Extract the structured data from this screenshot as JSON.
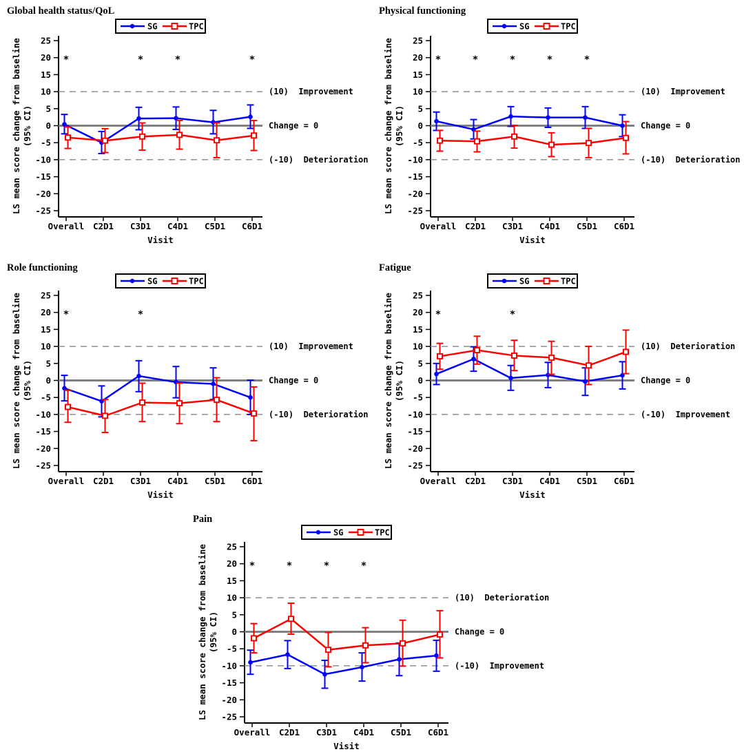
{
  "figure": {
    "colors": {
      "sg": "#0000ff",
      "tpc": "#ff0000",
      "zero_line": "#808080",
      "ref_line": "#8f8f8f",
      "axis": "#000000",
      "background": "#ffffff"
    },
    "legend": {
      "items": [
        {
          "label": "SG",
          "marker": "filled-circle",
          "color": "#0000ff"
        },
        {
          "label": "TPC",
          "marker": "open-square",
          "color": "#ff0000"
        }
      ]
    }
  },
  "axes_shared": {
    "ylabel_line1": "LS mean score change from baseline",
    "ylabel_line2": "(95% CI)",
    "xlabel": "Visit",
    "yticks": [
      25,
      20,
      15,
      10,
      5,
      0,
      -5,
      -10,
      -15,
      -20,
      -25
    ],
    "ylim": [
      -25,
      25
    ],
    "grid": false,
    "legend_position": "top-center",
    "zero_label": "Change = 0",
    "significance_marker": "*",
    "significance_y": 20
  },
  "chart_data": [
    {
      "type": "line",
      "title": "Global health status/QoL",
      "categories": [
        "Overall",
        "C2D1",
        "C3D1",
        "C4D1",
        "C5D1",
        "C6D1"
      ],
      "upper_ref": {
        "value": 10,
        "label": "(10)  Improvement"
      },
      "lower_ref": {
        "value": -10,
        "label": "(-10)  Deterioration"
      },
      "significance": [
        true,
        false,
        true,
        true,
        false,
        true
      ],
      "series": [
        {
          "name": "SG",
          "color": "#0000ff",
          "marker": "filled-circle",
          "values": [
            0.4,
            -5.0,
            2.1,
            2.2,
            1.0,
            2.6
          ],
          "ci_low": [
            -2.4,
            -8.2,
            -1.2,
            -1.1,
            -2.4,
            -0.8
          ],
          "ci_high": [
            3.3,
            -1.7,
            5.4,
            5.5,
            4.5,
            6.1
          ]
        },
        {
          "name": "TPC",
          "color": "#ff0000",
          "marker": "open-square",
          "values": [
            -3.5,
            -4.4,
            -3.2,
            -2.7,
            -4.3,
            -2.9
          ],
          "ci_low": [
            -6.7,
            -7.9,
            -7.2,
            -6.9,
            -9.4,
            -7.3
          ],
          "ci_high": [
            -0.4,
            -0.9,
            0.8,
            1.5,
            0.8,
            1.5
          ]
        }
      ]
    },
    {
      "type": "line",
      "title": "Physical functioning",
      "categories": [
        "Overall",
        "C2D1",
        "C3D1",
        "C4D1",
        "C5D1",
        "C6D1"
      ],
      "upper_ref": {
        "value": 10,
        "label": "(10)  Improvement"
      },
      "lower_ref": {
        "value": -10,
        "label": "(-10)  Deterioration"
      },
      "significance": [
        true,
        true,
        true,
        true,
        true,
        false
      ],
      "series": [
        {
          "name": "SG",
          "color": "#0000ff",
          "marker": "filled-circle",
          "values": [
            1.3,
            -1.1,
            2.7,
            2.4,
            2.4,
            0.0
          ],
          "ci_low": [
            -1.4,
            -3.9,
            -0.2,
            -0.5,
            -0.8,
            -3.2
          ],
          "ci_high": [
            4.0,
            1.8,
            5.6,
            5.2,
            5.6,
            3.2
          ]
        },
        {
          "name": "TPC",
          "color": "#ff0000",
          "marker": "open-square",
          "values": [
            -4.4,
            -4.6,
            -3.2,
            -5.6,
            -5.1,
            -3.6
          ],
          "ci_low": [
            -7.5,
            -7.7,
            -6.6,
            -9.1,
            -9.4,
            -8.3
          ],
          "ci_high": [
            -1.4,
            -1.6,
            0.1,
            -2.1,
            -0.8,
            1.2
          ]
        }
      ]
    },
    {
      "type": "line",
      "title": "Role functioning",
      "categories": [
        "Overall",
        "C2D1",
        "C3D1",
        "C4D1",
        "C5D1",
        "C6D1"
      ],
      "upper_ref": {
        "value": 10,
        "label": "(10)  Improvement"
      },
      "lower_ref": {
        "value": -10,
        "label": "(-10)  Deterioration"
      },
      "significance": [
        true,
        false,
        true,
        false,
        false,
        false
      ],
      "series": [
        {
          "name": "SG",
          "color": "#0000ff",
          "marker": "filled-circle",
          "values": [
            -2.3,
            -6.1,
            1.3,
            -0.5,
            -1.0,
            -5.0
          ],
          "ci_low": [
            -6.0,
            -10.7,
            -3.3,
            -5.1,
            -5.6,
            -10.0
          ],
          "ci_high": [
            1.5,
            -1.6,
            5.8,
            4.1,
            3.7,
            0.1
          ]
        },
        {
          "name": "TPC",
          "color": "#ff0000",
          "marker": "open-square",
          "values": [
            -7.8,
            -10.4,
            -6.5,
            -6.7,
            -5.7,
            -9.7
          ],
          "ci_low": [
            -12.3,
            -15.3,
            -12.1,
            -12.7,
            -12.1,
            -17.7
          ],
          "ci_high": [
            -2.9,
            -5.6,
            -0.8,
            -0.8,
            0.8,
            -1.9
          ]
        }
      ]
    },
    {
      "type": "line",
      "title": "Fatigue",
      "categories": [
        "Overall",
        "C2D1",
        "C3D1",
        "C4D1",
        "C5D1",
        "C6D1"
      ],
      "upper_ref": {
        "value": 10,
        "label": "(10)  Deterioration"
      },
      "lower_ref": {
        "value": -10,
        "label": "(-10)  Improvement"
      },
      "significance": [
        true,
        false,
        true,
        false,
        false,
        false
      ],
      "series": [
        {
          "name": "SG",
          "color": "#0000ff",
          "marker": "filled-circle",
          "values": [
            1.9,
            6.3,
            0.7,
            1.6,
            -0.3,
            1.5
          ],
          "ci_low": [
            -1.2,
            2.7,
            -2.9,
            -2.1,
            -4.4,
            -2.5
          ],
          "ci_high": [
            5.0,
            9.9,
            4.4,
            5.3,
            3.7,
            5.5
          ]
        },
        {
          "name": "TPC",
          "color": "#ff0000",
          "marker": "open-square",
          "values": [
            7.1,
            8.9,
            7.3,
            6.7,
            4.4,
            8.4
          ],
          "ci_low": [
            3.3,
            4.8,
            2.9,
            1.8,
            -1.2,
            2.0
          ],
          "ci_high": [
            10.9,
            13.0,
            11.8,
            11.5,
            10.0,
            14.8
          ]
        }
      ]
    },
    {
      "type": "line",
      "title": "Pain",
      "categories": [
        "Overall",
        "C2D1",
        "C3D1",
        "C4D1",
        "C5D1",
        "C6D1"
      ],
      "upper_ref": {
        "value": 10,
        "label": "(10)  Deterioration"
      },
      "lower_ref": {
        "value": -10,
        "label": "(-10)  Improvement"
      },
      "significance": [
        true,
        true,
        true,
        true,
        false,
        false
      ],
      "series": [
        {
          "name": "SG",
          "color": "#0000ff",
          "marker": "filled-circle",
          "values": [
            -9.0,
            -6.7,
            -12.5,
            -10.4,
            -8.1,
            -7.0
          ],
          "ci_low": [
            -12.5,
            -10.8,
            -16.6,
            -14.5,
            -12.9,
            -11.6
          ],
          "ci_high": [
            -5.4,
            -2.6,
            -8.4,
            -6.2,
            -3.3,
            -2.5
          ]
        },
        {
          "name": "TPC",
          "color": "#ff0000",
          "marker": "open-square",
          "values": [
            -1.9,
            3.8,
            -5.3,
            -4.0,
            -3.4,
            -0.8
          ],
          "ci_low": [
            -6.2,
            -0.7,
            -10.3,
            -9.1,
            -10.1,
            -7.7
          ],
          "ci_high": [
            2.4,
            8.4,
            -0.2,
            1.2,
            3.4,
            6.2
          ]
        }
      ]
    }
  ]
}
